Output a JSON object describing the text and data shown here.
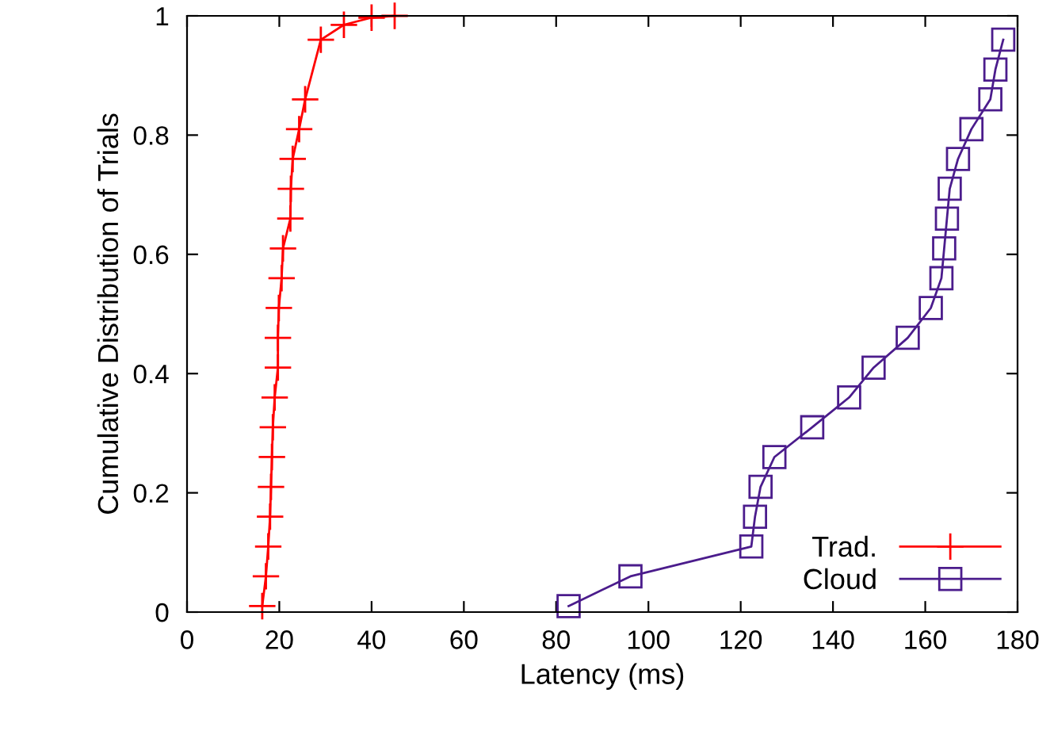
{
  "chart_data": {
    "type": "line",
    "xlabel": "Latency (ms)",
    "ylabel": "Cumulative Distribution of Trials",
    "xlim": [
      0,
      180
    ],
    "xticks": [
      0,
      20,
      40,
      60,
      80,
      100,
      120,
      140,
      160,
      180
    ],
    "ylim": [
      0,
      1
    ],
    "yticks": [
      0,
      0.2,
      0.4,
      0.6,
      0.8,
      1
    ],
    "grid": false,
    "legend": "bottom right",
    "series": [
      {
        "name": "Trad.",
        "color": "#ff0000",
        "marker": "cross",
        "x": [
          16.3,
          17.1,
          17.6,
          18.0,
          18.2,
          18.4,
          18.6,
          19.0,
          19.7,
          19.7,
          19.9,
          20.5,
          20.8,
          22.4,
          22.5,
          22.9,
          24.3,
          25.6,
          29.0,
          34,
          40,
          45
        ],
        "values": [
          0.01,
          0.06,
          0.11,
          0.16,
          0.21,
          0.26,
          0.31,
          0.36,
          0.41,
          0.46,
          0.51,
          0.56,
          0.61,
          0.66,
          0.71,
          0.76,
          0.81,
          0.86,
          0.96,
          0.985,
          0.997,
          1.0
        ]
      },
      {
        "name": "Cloud",
        "color": "#4b1c8c",
        "marker": "square",
        "x": [
          82.7,
          96.1,
          122.3,
          123.1,
          124.3,
          127.3,
          135.5,
          143.5,
          148.8,
          156.2,
          161.2,
          163.5,
          164.1,
          164.7,
          165.3,
          167.1,
          170.0,
          174.1,
          175.2,
          176.9
        ],
        "values": [
          0.01,
          0.06,
          0.11,
          0.16,
          0.21,
          0.26,
          0.31,
          0.36,
          0.41,
          0.46,
          0.51,
          0.56,
          0.61,
          0.66,
          0.71,
          0.76,
          0.81,
          0.86,
          0.91,
          0.96
        ]
      }
    ]
  }
}
